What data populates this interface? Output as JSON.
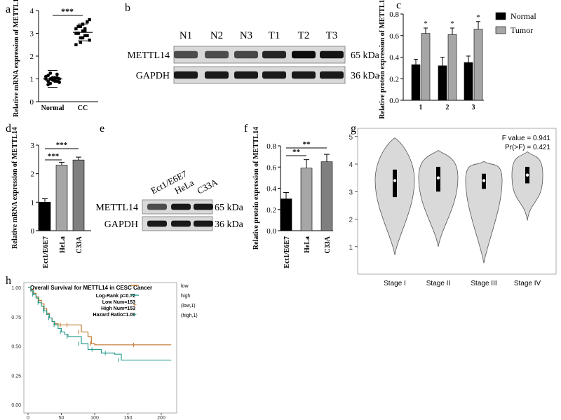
{
  "panel_letters": [
    "a",
    "b",
    "c",
    "d",
    "e",
    "f",
    "g",
    "h"
  ],
  "chart_data": [
    {
      "panel": "a",
      "type": "scatter",
      "categories": [
        "Normal",
        "CC"
      ],
      "ylabel": "Relative mRNA expression of METTL14",
      "ylim": [
        0,
        4
      ],
      "yticks": [
        "0",
        "1",
        "2",
        "3",
        "4"
      ],
      "significance": "***",
      "series": [
        {
          "values": [
            1.1,
            0.9,
            1.0,
            0.95,
            1.05,
            1.2,
            0.85,
            1.0,
            1.15,
            0.8,
            1.05,
            0.95,
            0.9,
            1.0,
            1.1,
            0.75,
            1.25,
            1.0,
            0.9,
            1.05
          ]
        },
        {
          "values": [
            3.0,
            3.3,
            2.8,
            3.1,
            2.9,
            3.5,
            2.7,
            3.2,
            3.0,
            2.6,
            3.4,
            3.1,
            2.9,
            3.6,
            2.5,
            3.0,
            3.3,
            2.8,
            3.2,
            2.9
          ]
        }
      ]
    },
    {
      "panel": "b",
      "type": "table",
      "lanes": [
        "N1",
        "N2",
        "N3",
        "T1",
        "T2",
        "T3"
      ],
      "rows": [
        {
          "name": "METTL14",
          "size": "65 kDa",
          "intensity": [
            0.7,
            0.7,
            0.72,
            0.85,
            0.95,
            0.92
          ]
        },
        {
          "name": "GAPDH",
          "size": "36 kDa",
          "intensity": [
            0.9,
            0.9,
            0.9,
            0.9,
            0.9,
            0.9
          ]
        }
      ]
    },
    {
      "panel": "c",
      "type": "bar",
      "categories": [
        "1",
        "2",
        "3"
      ],
      "ylabel": "Relative protein expression of METTL14",
      "ylim": [
        0,
        0.8
      ],
      "yticks": [
        "0.0",
        "0.2",
        "0.4",
        "0.6",
        "0.8"
      ],
      "series": [
        {
          "name": "Normal",
          "values": [
            0.33,
            0.32,
            0.35
          ],
          "errors": [
            0.05,
            0.08,
            0.06
          ],
          "color": "#000000"
        },
        {
          "name": "Tumor",
          "values": [
            0.62,
            0.61,
            0.66
          ],
          "errors": [
            0.05,
            0.06,
            0.07
          ],
          "color": "#a6a6a6"
        }
      ],
      "annotations": [
        "*",
        "*",
        "*"
      ]
    },
    {
      "panel": "d",
      "type": "bar",
      "categories": [
        "Ect1/E6E7",
        "HeLa",
        "C33A"
      ],
      "ylabel": "Relative mRNA expression of METTL14",
      "ylim": [
        0,
        3
      ],
      "yticks": [
        "0",
        "1",
        "2",
        "3"
      ],
      "values": [
        1.0,
        2.3,
        2.48
      ],
      "errors": [
        0.12,
        0.1,
        0.1
      ],
      "colors": [
        "#000000",
        "#a6a6a6",
        "#7f7f7f"
      ],
      "significance": [
        "***",
        "***"
      ]
    },
    {
      "panel": "e",
      "type": "table",
      "lanes": [
        "Ect1/E6E7",
        "HeLa",
        "C33A"
      ],
      "rows": [
        {
          "name": "METTL14",
          "size": "65 kDa",
          "intensity": [
            0.7,
            0.9,
            0.9
          ]
        },
        {
          "name": "GAPDH",
          "size": "36 kDa",
          "intensity": [
            0.9,
            0.9,
            0.9
          ]
        }
      ]
    },
    {
      "panel": "f",
      "type": "bar",
      "categories": [
        "Ect1/E6E7",
        "HeLa",
        "C33A"
      ],
      "ylabel": "Relative protein expression of METTL14",
      "ylim": [
        0,
        0.8
      ],
      "yticks": [
        "0.0",
        "0.2",
        "0.4",
        "0.6",
        "0.8"
      ],
      "values": [
        0.3,
        0.59,
        0.65
      ],
      "errors": [
        0.06,
        0.08,
        0.07
      ],
      "colors": [
        "#000000",
        "#a6a6a6",
        "#7f7f7f"
      ],
      "significance": [
        "**",
        "**"
      ]
    },
    {
      "panel": "g",
      "type": "violin",
      "categories": [
        "Stage I",
        "Stage II",
        "Stage III",
        "Stage IV"
      ],
      "ylim": [
        0,
        5
      ],
      "yticks": [
        "1",
        "2",
        "3",
        "4",
        "5"
      ],
      "stats_text": [
        "F value = 0.941",
        "Pr(>F) = 0.421"
      ],
      "violins": [
        {
          "min": 0.7,
          "max": 4.95,
          "q1": 2.8,
          "median": 3.4,
          "q3": 3.8
        },
        {
          "min": 1.0,
          "max": 4.5,
          "q1": 3.0,
          "median": 3.5,
          "q3": 3.9
        },
        {
          "min": 0.4,
          "max": 4.1,
          "q1": 3.1,
          "median": 3.4,
          "q3": 3.65
        },
        {
          "min": 1.95,
          "max": 4.45,
          "q1": 3.3,
          "median": 3.6,
          "q3": 3.9
        }
      ]
    },
    {
      "panel": "h",
      "type": "line",
      "title": "Overall Survival for METTL14 in CESC Cancer",
      "stats_text": [
        "Log-Rank p=0.72",
        "Low Num=153",
        "High Num=153",
        "Hazard Ratio=1.09"
      ],
      "xlim": [
        0,
        220
      ],
      "xticks": [
        "0",
        "50",
        "100",
        "150",
        "200"
      ],
      "ylim": [
        0,
        1
      ],
      "yticks": [
        "0.00",
        "0.25",
        "0.50",
        "0.75",
        "1.00"
      ],
      "legend": [
        "low",
        "high",
        "(low,1)",
        "(high,1)"
      ],
      "series": [
        {
          "name": "low",
          "color": "#c0772b",
          "x": [
            0,
            4,
            8,
            12,
            16,
            20,
            24,
            28,
            32,
            36,
            40,
            45,
            50,
            55,
            60,
            70,
            80,
            90,
            95,
            100,
            215
          ],
          "y": [
            1.0,
            0.98,
            0.95,
            0.92,
            0.89,
            0.86,
            0.82,
            0.78,
            0.74,
            0.71,
            0.69,
            0.68,
            0.68,
            0.68,
            0.68,
            0.68,
            0.62,
            0.58,
            0.52,
            0.51,
            0.51
          ]
        },
        {
          "name": "high",
          "color": "#2a9d8f",
          "x": [
            0,
            4,
            8,
            12,
            16,
            20,
            24,
            28,
            32,
            36,
            40,
            45,
            50,
            55,
            60,
            70,
            80,
            90,
            100,
            110,
            120,
            130,
            140,
            215
          ],
          "y": [
            1.0,
            0.97,
            0.94,
            0.91,
            0.87,
            0.84,
            0.8,
            0.77,
            0.74,
            0.71,
            0.68,
            0.65,
            0.62,
            0.6,
            0.58,
            0.58,
            0.52,
            0.47,
            0.47,
            0.44,
            0.44,
            0.43,
            0.38,
            0.38
          ]
        }
      ]
    }
  ],
  "colors": {
    "low": "#c0772b",
    "high": "#2a9d8f",
    "normal_bar": "#000000",
    "tumor_bar": "#a6a6a6",
    "violin_fill": "#d9d9d9"
  }
}
